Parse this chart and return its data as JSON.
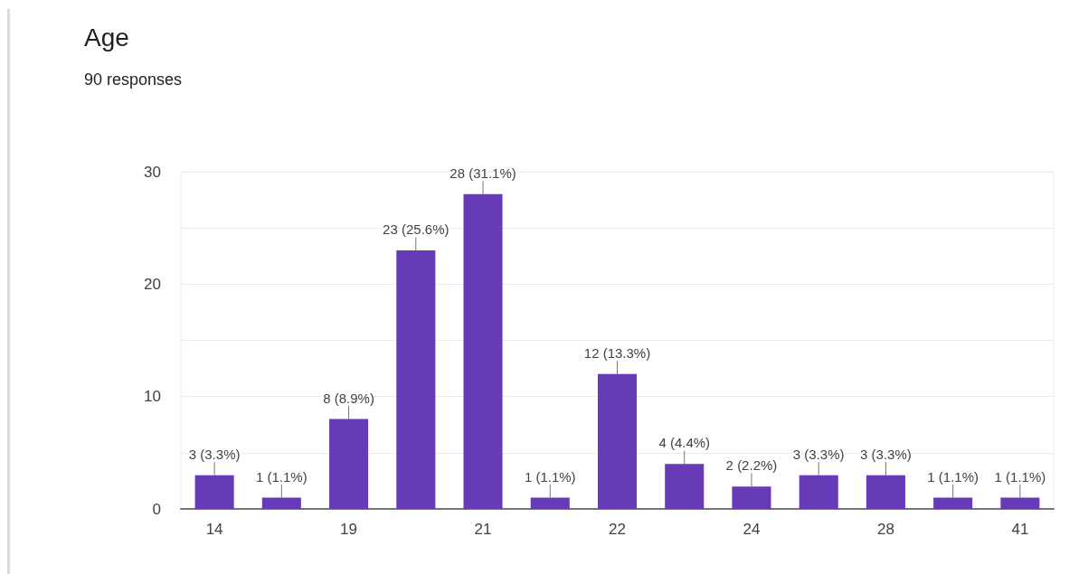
{
  "chart_data": {
    "type": "bar",
    "title": "Age",
    "subtitle": "90 responses",
    "categories": [
      "14",
      null,
      "19",
      null,
      "21",
      null,
      "22",
      null,
      "24",
      null,
      "28",
      null,
      "41"
    ],
    "values": [
      3,
      1,
      8,
      23,
      28,
      1,
      12,
      4,
      2,
      3,
      3,
      1,
      1
    ],
    "value_labels": [
      "3 (3.3%)",
      "1 (1.1%)",
      "8 (8.9%)",
      "23 (25.6%)",
      "28 (31.1%)",
      "1 (1.1%)",
      "12 (13.3%)",
      "4 (4.4%)",
      "2 (2.2%)",
      "3 (3.3%)",
      "3 (3.3%)",
      "1 (1.1%)",
      "1 (1.1%)"
    ],
    "color": "#673ab7",
    "ylim": [
      0,
      30
    ],
    "yticks": [
      0,
      {
        "value": 5,
        "label": null
      },
      10,
      {
        "value": 15,
        "label": null
      },
      20,
      {
        "value": 25,
        "label": null
      },
      30
    ],
    "grid": "y"
  }
}
